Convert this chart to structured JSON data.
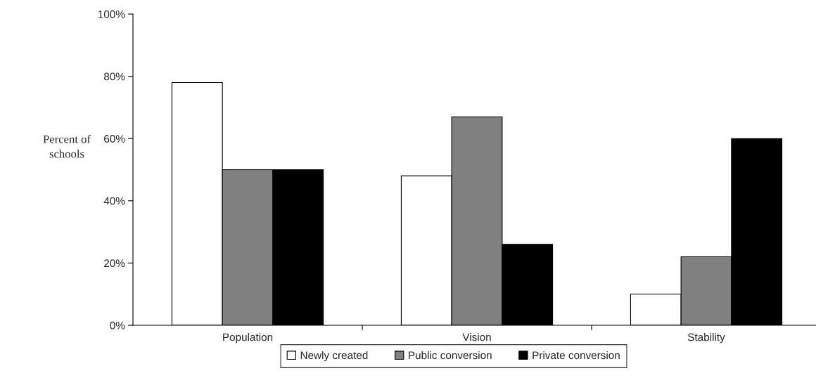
{
  "chart_data": {
    "type": "bar",
    "categories": [
      "Population",
      "Vision",
      "Stability"
    ],
    "series": [
      {
        "name": "Newly created",
        "color": "#ffffff",
        "values": [
          78,
          48,
          10
        ]
      },
      {
        "name": "Public conversion",
        "color": "#808080",
        "values": [
          50,
          67,
          22
        ]
      },
      {
        "name": "Private conversion",
        "color": "#000000",
        "values": [
          50,
          26,
          60
        ]
      }
    ],
    "ylabel": "Percent of\nschools",
    "ylim": [
      0,
      100
    ],
    "yticks": [
      {
        "value": 0,
        "label": "0%"
      },
      {
        "value": 20,
        "label": "20%"
      },
      {
        "value": 40,
        "label": "40%"
      },
      {
        "value": 60,
        "label": "60%"
      },
      {
        "value": 80,
        "label": "80%"
      },
      {
        "value": 100,
        "label": "100%"
      }
    ],
    "grid": false,
    "legend": "bottom"
  }
}
